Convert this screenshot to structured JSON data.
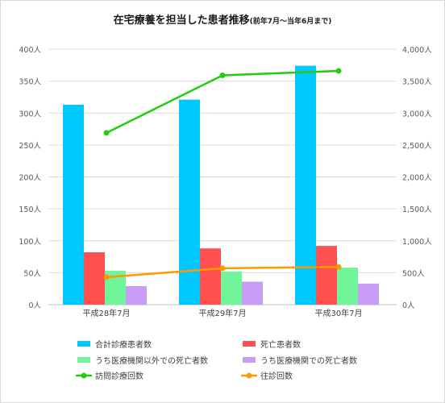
{
  "chart_data": {
    "type": "bar",
    "title": "在宅療養を担当した患者推移",
    "subtitle": "(前年7月～当年6月まで)",
    "categories": [
      "平成28年7月",
      "平成29年7月",
      "平成30年7月"
    ],
    "left_axis": {
      "ylim": [
        0,
        400
      ],
      "ticks": [
        0,
        50,
        100,
        150,
        200,
        250,
        300,
        350,
        400
      ],
      "tick_labels": [
        "0人",
        "50人",
        "100人",
        "150人",
        "200人",
        "250人",
        "300人",
        "350人",
        "400人"
      ]
    },
    "right_axis": {
      "ylim": [
        0,
        4000
      ],
      "ticks": [
        0,
        500,
        1000,
        1500,
        2000,
        2500,
        3000,
        3500,
        4000
      ],
      "tick_labels": [
        "0人",
        "500人",
        "1,000人",
        "1,500人",
        "2,000人",
        "2,500人",
        "3,000人",
        "3,500人",
        "4,000人"
      ]
    },
    "bar_series": [
      {
        "name": "合計診療患者数",
        "color": "#00c8ff",
        "values": [
          313,
          321,
          374
        ]
      },
      {
        "name": "死亡患者数",
        "color": "#ff5050",
        "values": [
          82,
          88,
          92
        ]
      },
      {
        "name": "うち医療機関以外での死亡者数",
        "color": "#70f59a",
        "values": [
          53,
          52,
          58
        ]
      },
      {
        "name": "うち医療機関での死亡者数",
        "color": "#c89cf5",
        "values": [
          29,
          36,
          33
        ]
      }
    ],
    "line_series": [
      {
        "name": "訪問診療回数",
        "color": "#22cc11",
        "axis": "right",
        "values": [
          2690,
          3590,
          3660
        ]
      },
      {
        "name": "往診回数",
        "color": "#ff9900",
        "axis": "right",
        "values": [
          430,
          570,
          590
        ]
      }
    ],
    "legend": "bottom",
    "grid": "horizontal"
  }
}
